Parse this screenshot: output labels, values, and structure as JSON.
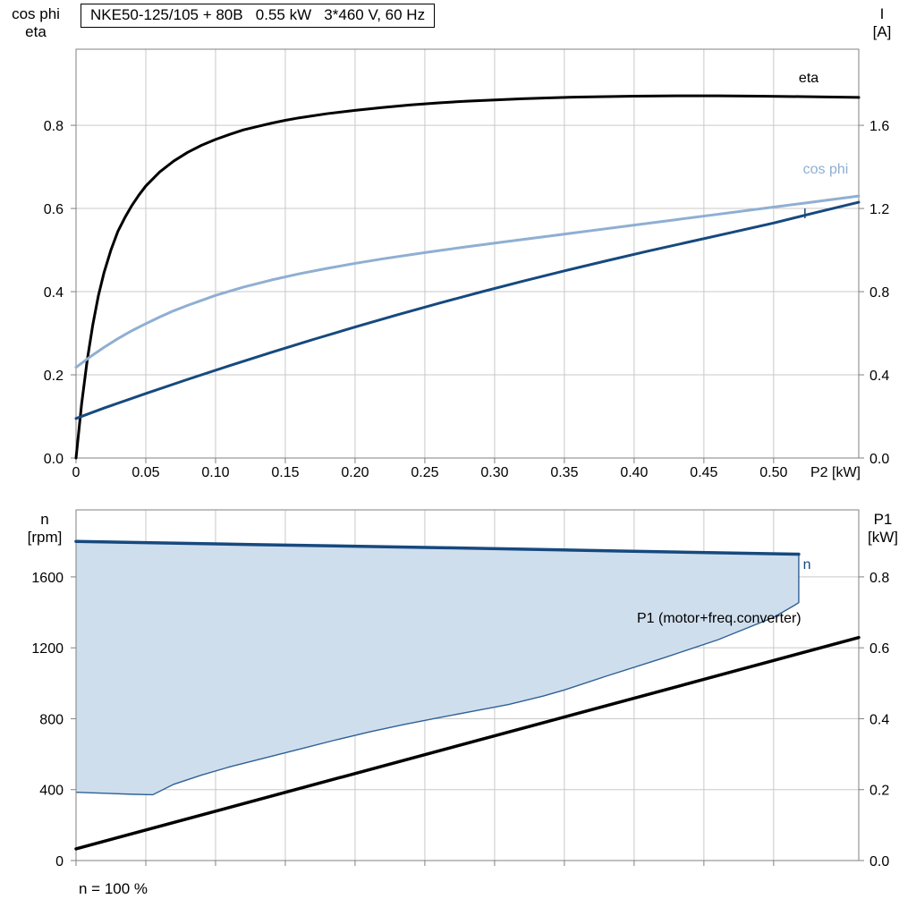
{
  "title_box": {
    "text": "NKE50-125/105 + 80B   0.55 kW   3*460 V, 60 Hz"
  },
  "footnote": {
    "text": "n = 100 %"
  },
  "colors": {
    "black": "#000000",
    "dark_blue": "#16497E",
    "light_blue": "#8FAFD2",
    "region_fill": "#CFDEED",
    "region_edge": "#2F6096",
    "grid": "#C9C9C9",
    "frame": "#808080",
    "text": "#000000"
  },
  "chart_data": [
    {
      "id": "top",
      "type": "line",
      "title": "NKE50-125/105 + 80B   0.55 kW   3*460 V, 60 Hz",
      "x_axis": {
        "label": "P2 [kW]",
        "range": [
          0,
          0.561
        ],
        "ticks": [
          0,
          0.05,
          0.1,
          0.15,
          0.2,
          0.25,
          0.3,
          0.35,
          0.4,
          0.45,
          0.5
        ],
        "tick_labels": [
          "0",
          "0.05",
          "0.10",
          "0.15",
          "0.20",
          "0.25",
          "0.30",
          "0.35",
          "0.40",
          "0.45",
          "0.50"
        ],
        "show_tick_labels": true
      },
      "left_axis": {
        "label_lines": [
          "cos phi",
          "eta"
        ],
        "range": [
          0,
          0.983
        ],
        "ticks": [
          0,
          0.2,
          0.4,
          0.6,
          0.8
        ],
        "tick_labels": [
          "0.0",
          "0.2",
          "0.4",
          "0.6",
          "0.8"
        ]
      },
      "right_axis": {
        "label_lines": [
          "I",
          "[A]"
        ],
        "range": [
          0,
          1.966
        ],
        "ticks": [
          0,
          0.4,
          0.8,
          1.2,
          1.6
        ],
        "tick_labels": [
          "0.0",
          "0.4",
          "0.8",
          "1.2",
          "1.6"
        ]
      },
      "series": [
        {
          "name": "eta",
          "kind": "line",
          "axis": "left",
          "color": "black",
          "width": 3,
          "points": [
            [
              0,
              0
            ],
            [
              0.004,
              0.13
            ],
            [
              0.008,
              0.235
            ],
            [
              0.012,
              0.32
            ],
            [
              0.016,
              0.39
            ],
            [
              0.02,
              0.445
            ],
            [
              0.025,
              0.5
            ],
            [
              0.03,
              0.545
            ],
            [
              0.035,
              0.578
            ],
            [
              0.04,
              0.607
            ],
            [
              0.045,
              0.632
            ],
            [
              0.05,
              0.654
            ],
            [
              0.06,
              0.688
            ],
            [
              0.07,
              0.714
            ],
            [
              0.08,
              0.735
            ],
            [
              0.09,
              0.752
            ],
            [
              0.1,
              0.766
            ],
            [
              0.11,
              0.778
            ],
            [
              0.12,
              0.789
            ],
            [
              0.13,
              0.797
            ],
            [
              0.14,
              0.805
            ],
            [
              0.15,
              0.812
            ],
            [
              0.16,
              0.818
            ],
            [
              0.18,
              0.828
            ],
            [
              0.2,
              0.836
            ],
            [
              0.22,
              0.843
            ],
            [
              0.24,
              0.849
            ],
            [
              0.26,
              0.854
            ],
            [
              0.28,
              0.858
            ],
            [
              0.3,
              0.861
            ],
            [
              0.32,
              0.864
            ],
            [
              0.34,
              0.866
            ],
            [
              0.36,
              0.868
            ],
            [
              0.38,
              0.869
            ],
            [
              0.4,
              0.87
            ],
            [
              0.43,
              0.871
            ],
            [
              0.46,
              0.871
            ],
            [
              0.49,
              0.87
            ],
            [
              0.52,
              0.869
            ],
            [
              0.561,
              0.867
            ]
          ]
        },
        {
          "name": "cos-phi",
          "kind": "line",
          "axis": "left",
          "color": "light_blue",
          "width": 3,
          "points": [
            [
              0,
              0.218
            ],
            [
              0.01,
              0.243
            ],
            [
              0.02,
              0.266
            ],
            [
              0.03,
              0.287
            ],
            [
              0.04,
              0.306
            ],
            [
              0.05,
              0.323
            ],
            [
              0.06,
              0.339
            ],
            [
              0.07,
              0.354
            ],
            [
              0.08,
              0.367
            ],
            [
              0.09,
              0.379
            ],
            [
              0.1,
              0.391
            ],
            [
              0.12,
              0.411
            ],
            [
              0.14,
              0.428
            ],
            [
              0.16,
              0.443
            ],
            [
              0.18,
              0.456
            ],
            [
              0.2,
              0.468
            ],
            [
              0.22,
              0.479
            ],
            [
              0.25,
              0.494
            ],
            [
              0.28,
              0.508
            ],
            [
              0.31,
              0.521
            ],
            [
              0.34,
              0.534
            ],
            [
              0.37,
              0.547
            ],
            [
              0.4,
              0.56
            ],
            [
              0.43,
              0.573
            ],
            [
              0.46,
              0.586
            ],
            [
              0.49,
              0.599
            ],
            [
              0.52,
              0.612
            ],
            [
              0.561,
              0.63
            ]
          ]
        },
        {
          "name": "current-I",
          "kind": "line",
          "axis": "right",
          "color": "dark_blue",
          "width": 3,
          "points": [
            [
              0,
              0.19
            ],
            [
              0.02,
              0.24
            ],
            [
              0.05,
              0.31
            ],
            [
              0.08,
              0.378
            ],
            [
              0.11,
              0.444
            ],
            [
              0.14,
              0.508
            ],
            [
              0.17,
              0.57
            ],
            [
              0.2,
              0.63
            ],
            [
              0.23,
              0.688
            ],
            [
              0.26,
              0.744
            ],
            [
              0.29,
              0.798
            ],
            [
              0.32,
              0.85
            ],
            [
              0.35,
              0.9
            ],
            [
              0.38,
              0.948
            ],
            [
              0.41,
              0.995
            ],
            [
              0.44,
              1.04
            ],
            [
              0.47,
              1.085
            ],
            [
              0.5,
              1.13
            ],
            [
              0.53,
              1.18
            ],
            [
              0.561,
              1.23
            ]
          ]
        }
      ],
      "annotations": [
        {
          "text": "eta",
          "color": "black",
          "x": 0.518,
          "y": 0.903,
          "anchor": "start"
        },
        {
          "text": "cos phi",
          "color": "light_blue",
          "x": 0.521,
          "y": 0.684,
          "anchor": "start"
        },
        {
          "text": "I",
          "color": "dark_blue",
          "x": 0.521,
          "y": 0.576,
          "anchor": "start"
        }
      ]
    },
    {
      "id": "bottom",
      "type": "line",
      "title": "",
      "x_axis": {
        "label": "",
        "range": [
          0,
          0.561
        ],
        "ticks": [
          0,
          0.05,
          0.1,
          0.15,
          0.2,
          0.25,
          0.3,
          0.35,
          0.4,
          0.45,
          0.5
        ],
        "tick_labels": [],
        "show_tick_labels": false
      },
      "left_axis": {
        "label_lines": [
          "n",
          "[rpm]"
        ],
        "range": [
          0,
          1978
        ],
        "ticks": [
          0,
          400,
          800,
          1200,
          1600
        ],
        "tick_labels": [
          "0",
          "400",
          "800",
          "1200",
          "1600"
        ]
      },
      "right_axis": {
        "label_lines": [
          "P1",
          "[kW]"
        ],
        "range": [
          0,
          0.989
        ],
        "ticks": [
          0,
          0.2,
          0.4,
          0.6,
          0.8
        ],
        "tick_labels": [
          "0.0",
          "0.2",
          "0.4",
          "0.6",
          "0.8"
        ]
      },
      "series": [
        {
          "name": "speed-control-region",
          "kind": "region",
          "axis": "left",
          "fill": "region_fill",
          "edge": "region_edge",
          "edge_width": 1.4,
          "lower": [
            [
              0,
              385
            ],
            [
              0.04,
              374
            ],
            [
              0.055,
              371
            ],
            [
              0.07,
              430
            ],
            [
              0.09,
              482
            ],
            [
              0.11,
              528
            ],
            [
              0.135,
              578
            ],
            [
              0.16,
              628
            ],
            [
              0.185,
              678
            ],
            [
              0.21,
              725
            ],
            [
              0.235,
              767
            ],
            [
              0.26,
              806
            ],
            [
              0.285,
              843
            ],
            [
              0.31,
              880
            ],
            [
              0.335,
              928
            ],
            [
              0.35,
              962
            ],
            [
              0.38,
              1040
            ],
            [
              0.42,
              1140
            ],
            [
              0.46,
              1245
            ],
            [
              0.5,
              1372
            ],
            [
              0.515,
              1440
            ],
            [
              0.518,
              1455
            ],
            [
              0.518,
              1728
            ]
          ],
          "upper": [
            [
              0,
              1800
            ],
            [
              0.13,
              1782
            ],
            [
              0.26,
              1765
            ],
            [
              0.39,
              1746
            ],
            [
              0.518,
              1728
            ]
          ]
        },
        {
          "name": "p1-motor-freq-converter",
          "kind": "line",
          "axis": "right",
          "color": "black",
          "width": 3.5,
          "points": [
            [
              0,
              0.033
            ],
            [
              0.561,
              0.629
            ]
          ]
        },
        {
          "name": "speed-n",
          "kind": "line",
          "axis": "left",
          "color": "dark_blue",
          "width": 3.5,
          "points": [
            [
              0,
              1800
            ],
            [
              0.13,
              1782
            ],
            [
              0.26,
              1765
            ],
            [
              0.39,
              1746
            ],
            [
              0.518,
              1728
            ]
          ]
        }
      ],
      "annotations": [
        {
          "text": "n",
          "color": "dark_blue",
          "x": 0.521,
          "y": 1645,
          "anchor": "start"
        },
        {
          "text": "P1 (motor+freq.converter)",
          "color": "black",
          "x": 0.402,
          "y": 1342,
          "anchor": "start"
        }
      ]
    }
  ]
}
